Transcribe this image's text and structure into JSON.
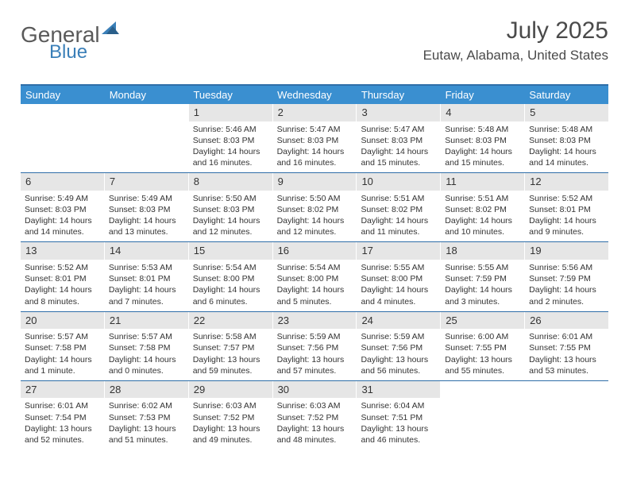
{
  "logo": {
    "word1": "General",
    "word2": "Blue"
  },
  "header": {
    "month": "July 2025",
    "location": "Eutaw, Alabama, United States"
  },
  "colors": {
    "header_bar": "#3a8fd0",
    "border": "#2f6ea8",
    "daynum_bg": "#e6e6e6",
    "logo_gray": "#5a5a5a",
    "logo_blue": "#3a7fb8"
  },
  "daynames": [
    "Sunday",
    "Monday",
    "Tuesday",
    "Wednesday",
    "Thursday",
    "Friday",
    "Saturday"
  ],
  "weeks": [
    [
      {
        "empty": true
      },
      {
        "empty": true
      },
      {
        "d": "1",
        "sr": "5:46 AM",
        "ss": "8:03 PM",
        "dl": "14 hours and 16 minutes."
      },
      {
        "d": "2",
        "sr": "5:47 AM",
        "ss": "8:03 PM",
        "dl": "14 hours and 16 minutes."
      },
      {
        "d": "3",
        "sr": "5:47 AM",
        "ss": "8:03 PM",
        "dl": "14 hours and 15 minutes."
      },
      {
        "d": "4",
        "sr": "5:48 AM",
        "ss": "8:03 PM",
        "dl": "14 hours and 15 minutes."
      },
      {
        "d": "5",
        "sr": "5:48 AM",
        "ss": "8:03 PM",
        "dl": "14 hours and 14 minutes."
      }
    ],
    [
      {
        "d": "6",
        "sr": "5:49 AM",
        "ss": "8:03 PM",
        "dl": "14 hours and 14 minutes."
      },
      {
        "d": "7",
        "sr": "5:49 AM",
        "ss": "8:03 PM",
        "dl": "14 hours and 13 minutes."
      },
      {
        "d": "8",
        "sr": "5:50 AM",
        "ss": "8:03 PM",
        "dl": "14 hours and 12 minutes."
      },
      {
        "d": "9",
        "sr": "5:50 AM",
        "ss": "8:02 PM",
        "dl": "14 hours and 12 minutes."
      },
      {
        "d": "10",
        "sr": "5:51 AM",
        "ss": "8:02 PM",
        "dl": "14 hours and 11 minutes."
      },
      {
        "d": "11",
        "sr": "5:51 AM",
        "ss": "8:02 PM",
        "dl": "14 hours and 10 minutes."
      },
      {
        "d": "12",
        "sr": "5:52 AM",
        "ss": "8:01 PM",
        "dl": "14 hours and 9 minutes."
      }
    ],
    [
      {
        "d": "13",
        "sr": "5:52 AM",
        "ss": "8:01 PM",
        "dl": "14 hours and 8 minutes."
      },
      {
        "d": "14",
        "sr": "5:53 AM",
        "ss": "8:01 PM",
        "dl": "14 hours and 7 minutes."
      },
      {
        "d": "15",
        "sr": "5:54 AM",
        "ss": "8:00 PM",
        "dl": "14 hours and 6 minutes."
      },
      {
        "d": "16",
        "sr": "5:54 AM",
        "ss": "8:00 PM",
        "dl": "14 hours and 5 minutes."
      },
      {
        "d": "17",
        "sr": "5:55 AM",
        "ss": "8:00 PM",
        "dl": "14 hours and 4 minutes."
      },
      {
        "d": "18",
        "sr": "5:55 AM",
        "ss": "7:59 PM",
        "dl": "14 hours and 3 minutes."
      },
      {
        "d": "19",
        "sr": "5:56 AM",
        "ss": "7:59 PM",
        "dl": "14 hours and 2 minutes."
      }
    ],
    [
      {
        "d": "20",
        "sr": "5:57 AM",
        "ss": "7:58 PM",
        "dl": "14 hours and 1 minute."
      },
      {
        "d": "21",
        "sr": "5:57 AM",
        "ss": "7:58 PM",
        "dl": "14 hours and 0 minutes."
      },
      {
        "d": "22",
        "sr": "5:58 AM",
        "ss": "7:57 PM",
        "dl": "13 hours and 59 minutes."
      },
      {
        "d": "23",
        "sr": "5:59 AM",
        "ss": "7:56 PM",
        "dl": "13 hours and 57 minutes."
      },
      {
        "d": "24",
        "sr": "5:59 AM",
        "ss": "7:56 PM",
        "dl": "13 hours and 56 minutes."
      },
      {
        "d": "25",
        "sr": "6:00 AM",
        "ss": "7:55 PM",
        "dl": "13 hours and 55 minutes."
      },
      {
        "d": "26",
        "sr": "6:01 AM",
        "ss": "7:55 PM",
        "dl": "13 hours and 53 minutes."
      }
    ],
    [
      {
        "d": "27",
        "sr": "6:01 AM",
        "ss": "7:54 PM",
        "dl": "13 hours and 52 minutes."
      },
      {
        "d": "28",
        "sr": "6:02 AM",
        "ss": "7:53 PM",
        "dl": "13 hours and 51 minutes."
      },
      {
        "d": "29",
        "sr": "6:03 AM",
        "ss": "7:52 PM",
        "dl": "13 hours and 49 minutes."
      },
      {
        "d": "30",
        "sr": "6:03 AM",
        "ss": "7:52 PM",
        "dl": "13 hours and 48 minutes."
      },
      {
        "d": "31",
        "sr": "6:04 AM",
        "ss": "7:51 PM",
        "dl": "13 hours and 46 minutes."
      },
      {
        "empty": true
      },
      {
        "empty": true
      }
    ]
  ],
  "labels": {
    "sunrise": "Sunrise: ",
    "sunset": "Sunset: ",
    "daylight": "Daylight: "
  }
}
